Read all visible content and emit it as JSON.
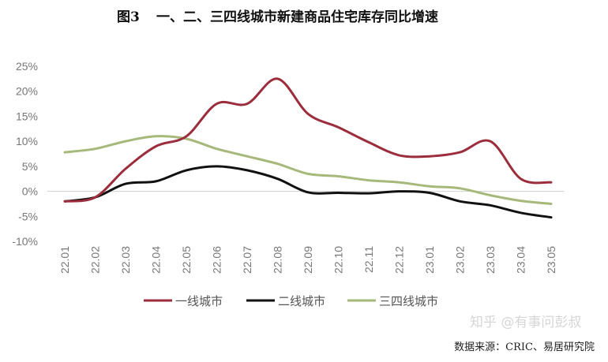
{
  "figure": {
    "label": "图3",
    "title": "一、二、三四线城市新建商品住宅库存同比增速",
    "source": "数据来源：CRIC、易居研究院",
    "watermark": "知乎 @有事问彭叔"
  },
  "chart_data": {
    "type": "line",
    "categories": [
      "22.01",
      "22.02",
      "22.03",
      "22.04",
      "22.05",
      "22.06",
      "22.07",
      "22.08",
      "22.09",
      "22.10",
      "22.11",
      "22.12",
      "23.01",
      "23.02",
      "23.03",
      "23.04",
      "23.05"
    ],
    "y_ticks": [
      "25%",
      "20%",
      "15%",
      "10%",
      "5%",
      "0%",
      "-5%",
      "-10%"
    ],
    "ylim": [
      -10,
      25
    ],
    "unit": "%",
    "grid": false,
    "legend_position": "bottom",
    "series": [
      {
        "name": "一线城市",
        "color": "#9b2d3c",
        "values": [
          -2.0,
          -1.2,
          4.5,
          9.0,
          11.0,
          17.5,
          17.5,
          22.5,
          15.5,
          12.8,
          9.8,
          7.2,
          7.0,
          7.8,
          10.0,
          2.5,
          1.8
        ]
      },
      {
        "name": "二线城市",
        "color": "#111111",
        "values": [
          -2.0,
          -1.2,
          1.5,
          2.0,
          4.2,
          5.0,
          4.2,
          2.5,
          -0.2,
          -0.3,
          -0.4,
          0.0,
          -0.3,
          -2.0,
          -2.8,
          -4.3,
          -5.2
        ]
      },
      {
        "name": "三四线城市",
        "color": "#a6b97a",
        "values": [
          7.8,
          8.5,
          10.0,
          11.0,
          10.5,
          8.5,
          7.0,
          5.5,
          3.5,
          3.0,
          2.2,
          1.8,
          1.0,
          0.6,
          -0.8,
          -1.9,
          -2.5
        ]
      }
    ]
  }
}
